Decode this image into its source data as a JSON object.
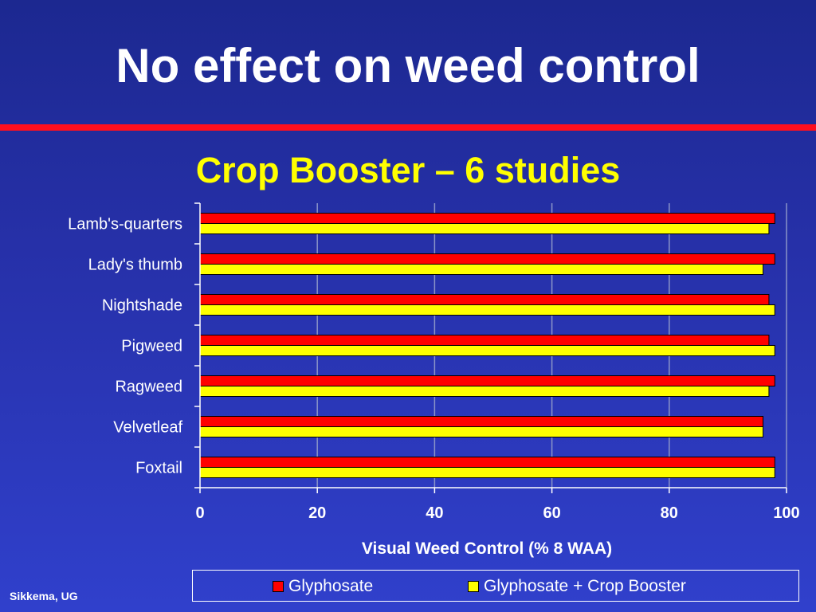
{
  "slide": {
    "title": "No effect on weed control",
    "source": "Sikkema, UG"
  },
  "colors": {
    "background": "#2a36b4",
    "rule": "#ff0f1e",
    "glyphosate": "#ff0000",
    "glyphosate_crop_booster": "#ffff00",
    "text": "#ffffff",
    "subtitle": "#ffff00"
  },
  "chart_data": {
    "type": "bar",
    "orientation": "horizontal",
    "title": "Crop Booster – 6 studies",
    "xlabel": "Visual Weed Control (% 8 WAA)",
    "ylabel": "",
    "xlim": [
      0,
      100
    ],
    "xticks": [
      0,
      20,
      40,
      60,
      80,
      100
    ],
    "grid": true,
    "legend_position": "bottom",
    "categories": [
      "Lamb's-quarters",
      "Lady's thumb",
      "Nightshade",
      "Pigweed",
      "Ragweed",
      "Velvetleaf",
      "Foxtail"
    ],
    "series": [
      {
        "name": "Glyphosate",
        "color": "#ff0000",
        "values": [
          98,
          98,
          97,
          97,
          98,
          96,
          98
        ]
      },
      {
        "name": "Glyphosate + Crop Booster",
        "color": "#ffff00",
        "values": [
          97,
          96,
          98,
          98,
          97,
          96,
          98
        ]
      }
    ]
  }
}
